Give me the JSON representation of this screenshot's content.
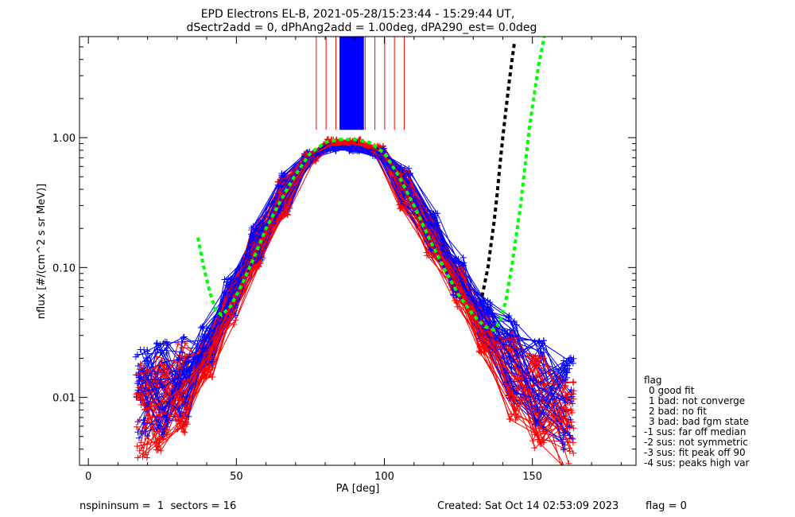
{
  "title": "EPD Electrons EL-B, 2021-05-28/15:23:44 - 15:29:44 UT,",
  "subtitle": "dSectr2add = 0, dPhAng2add = 1.00deg, dPA290_est=   0.0deg",
  "footer": {
    "left": "nspininsum =  1  sectors = 16",
    "created": "Created: Sat Oct 14 02:53:09 2023",
    "flag": "flag = 0"
  },
  "legend": {
    "title": "flag",
    "items": [
      "0 good fit",
      "1 bad: not converge",
      "2 bad: no fit",
      "3 bad: bad fgm state",
      "-1 sus: far off median",
      "-2 sus: not symmetric",
      "-3 sus: fit peak off 90",
      "-4 sus: peaks high var"
    ]
  },
  "colors": {
    "red": "#ff0000",
    "blue": "#0000ff",
    "green": "#00ff00",
    "black": "#000000"
  },
  "chart_data": {
    "type": "line",
    "xlabel": "PA [deg]",
    "ylabel": "nflux [#/(cm^2 s sr MeV)]",
    "xlim": [
      -3,
      185
    ],
    "ylim": [
      0.003,
      6.0
    ],
    "yscale": "log",
    "xticks": [
      0,
      50,
      100,
      150
    ],
    "xtick_labels": [
      "0",
      "50",
      "100",
      "150"
    ],
    "yticks": [
      0.01,
      0.1,
      1.0
    ],
    "ytick_labels": [
      "0.01",
      "0.10",
      "1.00"
    ],
    "series": [
      {
        "color": "blue",
        "style": "solid-with-plus-markers",
        "x": [
          18,
          25,
          32,
          40,
          48,
          57,
          66,
          75,
          82,
          90,
          98,
          107,
          116,
          125,
          134,
          143,
          152,
          162
        ],
        "y": [
          0.011,
          0.012,
          0.015,
          0.025,
          0.06,
          0.16,
          0.38,
          0.72,
          0.85,
          0.85,
          0.78,
          0.42,
          0.19,
          0.085,
          0.04,
          0.02,
          0.012,
          0.009
        ]
      },
      {
        "color": "red",
        "style": "solid-with-plus-markers",
        "x": [
          18,
          25,
          32,
          40,
          48,
          57,
          66,
          75,
          82,
          90,
          98,
          107,
          116,
          125,
          134,
          143,
          152,
          162
        ],
        "y": [
          0.008,
          0.009,
          0.012,
          0.02,
          0.05,
          0.14,
          0.35,
          0.7,
          0.9,
          0.9,
          0.8,
          0.4,
          0.17,
          0.07,
          0.03,
          0.015,
          0.009,
          0.006
        ]
      },
      {
        "color": "green",
        "style": "dashed",
        "x": [
          37,
          39,
          41,
          43,
          45,
          48,
          52,
          56,
          60,
          65,
          70,
          75,
          80,
          85,
          90,
          95,
          100,
          105,
          110,
          115,
          120,
          125,
          130,
          134,
          137,
          139,
          141,
          143,
          146,
          149,
          152,
          154
        ],
        "y": [
          0.17,
          0.1,
          0.065,
          0.047,
          0.043,
          0.05,
          0.075,
          0.12,
          0.2,
          0.33,
          0.52,
          0.76,
          0.92,
          0.97,
          0.97,
          0.92,
          0.76,
          0.5,
          0.3,
          0.17,
          0.1,
          0.062,
          0.043,
          0.035,
          0.033,
          0.038,
          0.055,
          0.1,
          0.3,
          1.2,
          3.5,
          6.0
        ]
      },
      {
        "color": "black",
        "style": "dashed",
        "x": [
          133,
          135,
          136,
          137,
          138,
          139,
          140,
          141,
          142,
          143,
          144
        ],
        "y": [
          0.06,
          0.1,
          0.15,
          0.22,
          0.35,
          0.6,
          1.0,
          1.6,
          2.5,
          3.8,
          5.5
        ]
      }
    ],
    "annotations": [
      "dense blue vertical spikes near PA 85-93 deg above 1.00",
      "red vertical lines near PA 76-107 deg above 1.00"
    ]
  }
}
